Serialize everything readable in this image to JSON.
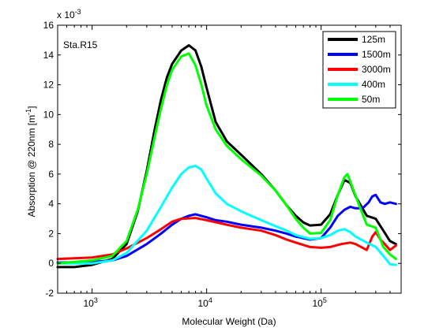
{
  "chart_data": {
    "type": "line",
    "title": "",
    "annotation": "Sta.R15",
    "xlabel": "Molecular Weight (Da)",
    "ylabel": "Absorption @ 220nm [m",
    "ylabel_sup": "-1",
    "ylabel_end": "]",
    "y_scale_prefix": "x 10",
    "y_scale_exp": "-3",
    "x_scale": "log",
    "xlim": [
      500,
      500000
    ],
    "ylim": [
      -2,
      16
    ],
    "y_ticks": [
      -2,
      0,
      2,
      4,
      6,
      8,
      10,
      12,
      14,
      16
    ],
    "y_tick_labels": [
      "-2",
      "0",
      "2",
      "4",
      "6",
      "8",
      "10",
      "12",
      "14",
      "16"
    ],
    "x_ticks": [
      1000,
      10000,
      100000
    ],
    "x_tick_base": "10",
    "x_tick_exps": [
      "3",
      "4",
      "5"
    ],
    "grid": false,
    "legend_position": "top-right",
    "series": [
      {
        "name": "125m",
        "color": "#000000",
        "points": [
          [
            500,
            -0.25
          ],
          [
            700,
            -0.25
          ],
          [
            1000,
            -0.1
          ],
          [
            1500,
            0.3
          ],
          [
            2000,
            1.3
          ],
          [
            2500,
            3.5
          ],
          [
            3000,
            6.2
          ],
          [
            3500,
            8.9
          ],
          [
            4000,
            11.0
          ],
          [
            4500,
            12.5
          ],
          [
            5000,
            13.4
          ],
          [
            6000,
            14.3
          ],
          [
            7000,
            14.65
          ],
          [
            8000,
            14.3
          ],
          [
            9000,
            13.2
          ],
          [
            10000,
            11.8
          ],
          [
            12000,
            9.5
          ],
          [
            15000,
            8.2
          ],
          [
            20000,
            7.3
          ],
          [
            30000,
            6.0
          ],
          [
            40000,
            4.9
          ],
          [
            50000,
            3.9
          ],
          [
            60000,
            3.2
          ],
          [
            70000,
            2.75
          ],
          [
            80000,
            2.55
          ],
          [
            100000,
            2.6
          ],
          [
            120000,
            3.3
          ],
          [
            140000,
            4.6
          ],
          [
            160000,
            5.6
          ],
          [
            180000,
            5.4
          ],
          [
            200000,
            4.5
          ],
          [
            250000,
            3.2
          ],
          [
            300000,
            3.0
          ],
          [
            350000,
            2.2
          ],
          [
            400000,
            1.5
          ],
          [
            450000,
            1.3
          ]
        ]
      },
      {
        "name": "1500m",
        "color": "#0000ff",
        "points": [
          [
            500,
            0.05
          ],
          [
            1000,
            0.1
          ],
          [
            1500,
            0.2
          ],
          [
            2000,
            0.5
          ],
          [
            3000,
            1.3
          ],
          [
            4000,
            2.0
          ],
          [
            5000,
            2.6
          ],
          [
            6000,
            3.0
          ],
          [
            7000,
            3.2
          ],
          [
            8000,
            3.3
          ],
          [
            10000,
            3.1
          ],
          [
            12000,
            2.9
          ],
          [
            15000,
            2.8
          ],
          [
            20000,
            2.6
          ],
          [
            30000,
            2.4
          ],
          [
            40000,
            2.2
          ],
          [
            50000,
            2.0
          ],
          [
            60000,
            1.8
          ],
          [
            80000,
            1.6
          ],
          [
            100000,
            1.7
          ],
          [
            120000,
            2.4
          ],
          [
            140000,
            3.2
          ],
          [
            160000,
            3.6
          ],
          [
            180000,
            3.8
          ],
          [
            200000,
            3.7
          ],
          [
            230000,
            3.7
          ],
          [
            260000,
            4.1
          ],
          [
            280000,
            4.5
          ],
          [
            300000,
            4.6
          ],
          [
            330000,
            4.1
          ],
          [
            360000,
            4.0
          ],
          [
            400000,
            4.1
          ],
          [
            450000,
            4.0
          ]
        ]
      },
      {
        "name": "3000m",
        "color": "#ff0000",
        "points": [
          [
            500,
            0.3
          ],
          [
            1000,
            0.4
          ],
          [
            1500,
            0.6
          ],
          [
            2000,
            1.0
          ],
          [
            3000,
            1.7
          ],
          [
            4000,
            2.3
          ],
          [
            5000,
            2.8
          ],
          [
            6000,
            3.0
          ],
          [
            8000,
            3.05
          ],
          [
            10000,
            2.9
          ],
          [
            15000,
            2.6
          ],
          [
            20000,
            2.4
          ],
          [
            30000,
            2.2
          ],
          [
            40000,
            1.9
          ],
          [
            50000,
            1.6
          ],
          [
            60000,
            1.4
          ],
          [
            80000,
            1.1
          ],
          [
            100000,
            1.05
          ],
          [
            120000,
            1.1
          ],
          [
            150000,
            1.3
          ],
          [
            180000,
            1.4
          ],
          [
            200000,
            1.3
          ],
          [
            250000,
            0.9
          ],
          [
            280000,
            1.8
          ],
          [
            300000,
            2.1
          ],
          [
            330000,
            1.6
          ],
          [
            360000,
            1.3
          ],
          [
            400000,
            0.9
          ],
          [
            450000,
            1.2
          ]
        ]
      },
      {
        "name": "400m",
        "color": "#00ffff",
        "points": [
          [
            500,
            0.0
          ],
          [
            1000,
            0.0
          ],
          [
            1500,
            0.2
          ],
          [
            2000,
            0.7
          ],
          [
            3000,
            2.2
          ],
          [
            4000,
            3.8
          ],
          [
            5000,
            5.1
          ],
          [
            6000,
            6.0
          ],
          [
            7000,
            6.45
          ],
          [
            8000,
            6.55
          ],
          [
            9000,
            6.3
          ],
          [
            10000,
            5.7
          ],
          [
            12000,
            4.7
          ],
          [
            15000,
            4.0
          ],
          [
            20000,
            3.5
          ],
          [
            30000,
            2.9
          ],
          [
            40000,
            2.5
          ],
          [
            50000,
            2.2
          ],
          [
            60000,
            1.9
          ],
          [
            80000,
            1.65
          ],
          [
            100000,
            1.7
          ],
          [
            120000,
            1.9
          ],
          [
            140000,
            2.2
          ],
          [
            160000,
            2.3
          ],
          [
            180000,
            2.1
          ],
          [
            200000,
            1.8
          ],
          [
            250000,
            1.4
          ],
          [
            300000,
            1.1
          ],
          [
            350000,
            0.5
          ],
          [
            400000,
            -0.05
          ],
          [
            450000,
            -0.1
          ]
        ]
      },
      {
        "name": "50m",
        "color": "#00ff00",
        "points": [
          [
            500,
            0.0
          ],
          [
            1000,
            0.2
          ],
          [
            1500,
            0.5
          ],
          [
            2000,
            1.5
          ],
          [
            2500,
            3.6
          ],
          [
            3000,
            6.0
          ],
          [
            3500,
            8.4
          ],
          [
            4000,
            10.4
          ],
          [
            4500,
            12.0
          ],
          [
            5000,
            13.0
          ],
          [
            6000,
            13.9
          ],
          [
            7000,
            14.1
          ],
          [
            8000,
            13.3
          ],
          [
            9000,
            12.0
          ],
          [
            10000,
            10.6
          ],
          [
            12000,
            9.0
          ],
          [
            15000,
            7.9
          ],
          [
            20000,
            7.0
          ],
          [
            30000,
            5.9
          ],
          [
            40000,
            4.9
          ],
          [
            50000,
            3.9
          ],
          [
            60000,
            3.0
          ],
          [
            70000,
            2.4
          ],
          [
            80000,
            2.0
          ],
          [
            100000,
            2.05
          ],
          [
            120000,
            2.9
          ],
          [
            140000,
            4.6
          ],
          [
            160000,
            5.8
          ],
          [
            170000,
            6.0
          ],
          [
            190000,
            5.0
          ],
          [
            220000,
            3.7
          ],
          [
            250000,
            2.6
          ],
          [
            300000,
            2.4
          ],
          [
            350000,
            1.1
          ],
          [
            400000,
            0.6
          ],
          [
            450000,
            0.3
          ]
        ]
      }
    ]
  }
}
